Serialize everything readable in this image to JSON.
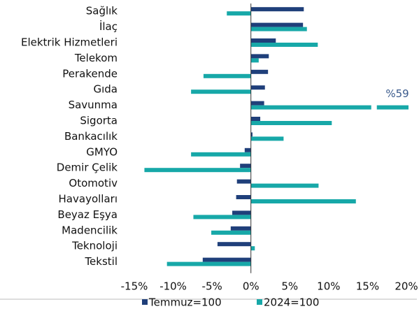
{
  "chart_data": {
    "type": "hbar",
    "categories": [
      "Sağlık",
      "İlaç",
      "Elektrik Hizmetleri",
      "Telekom",
      "Perakende",
      "Gıda",
      "Savunma",
      "Sigorta",
      "Bankacılık",
      "GMYO",
      "Demir Çelik",
      "Otomotiv",
      "Havayolları",
      "Beyaz Eşya",
      "Madencilik",
      "Teknoloji",
      "Tekstil"
    ],
    "series": [
      {
        "name": "Temmuz=100",
        "color": "#1f3f7a",
        "values": [
          6.8,
          6.7,
          3.2,
          2.3,
          2.2,
          1.8,
          1.7,
          1.2,
          0.2,
          -0.8,
          -1.4,
          -1.8,
          -1.9,
          -2.4,
          -2.6,
          -4.3,
          -6.2
        ]
      },
      {
        "name": "2024=100",
        "color": "#17a8a8",
        "values": [
          -3.1,
          7.2,
          8.6,
          1.0,
          -6.1,
          -7.7,
          59,
          10.4,
          4.2,
          -7.7,
          -13.7,
          8.7,
          13.5,
          -7.4,
          -5.1,
          0.5,
          -10.8
        ],
        "value_labels": [
          null,
          null,
          null,
          null,
          null,
          null,
          "%59",
          null,
          null,
          null,
          null,
          null,
          null,
          null,
          null,
          null,
          null
        ]
      }
    ],
    "xlim": [
      -15,
      20
    ],
    "xticks": [
      {
        "value": -15,
        "label": "-15%"
      },
      {
        "value": -10,
        "label": "-10%"
      },
      {
        "value": -5,
        "label": "-5%"
      },
      {
        "value": 0,
        "label": "0%"
      },
      {
        "value": 5,
        "label": "5%"
      },
      {
        "value": 10,
        "label": "10%"
      },
      {
        "value": 15,
        "label": "15%"
      },
      {
        "value": 20,
        "label": "20%"
      }
    ],
    "legend": "bottom"
  }
}
